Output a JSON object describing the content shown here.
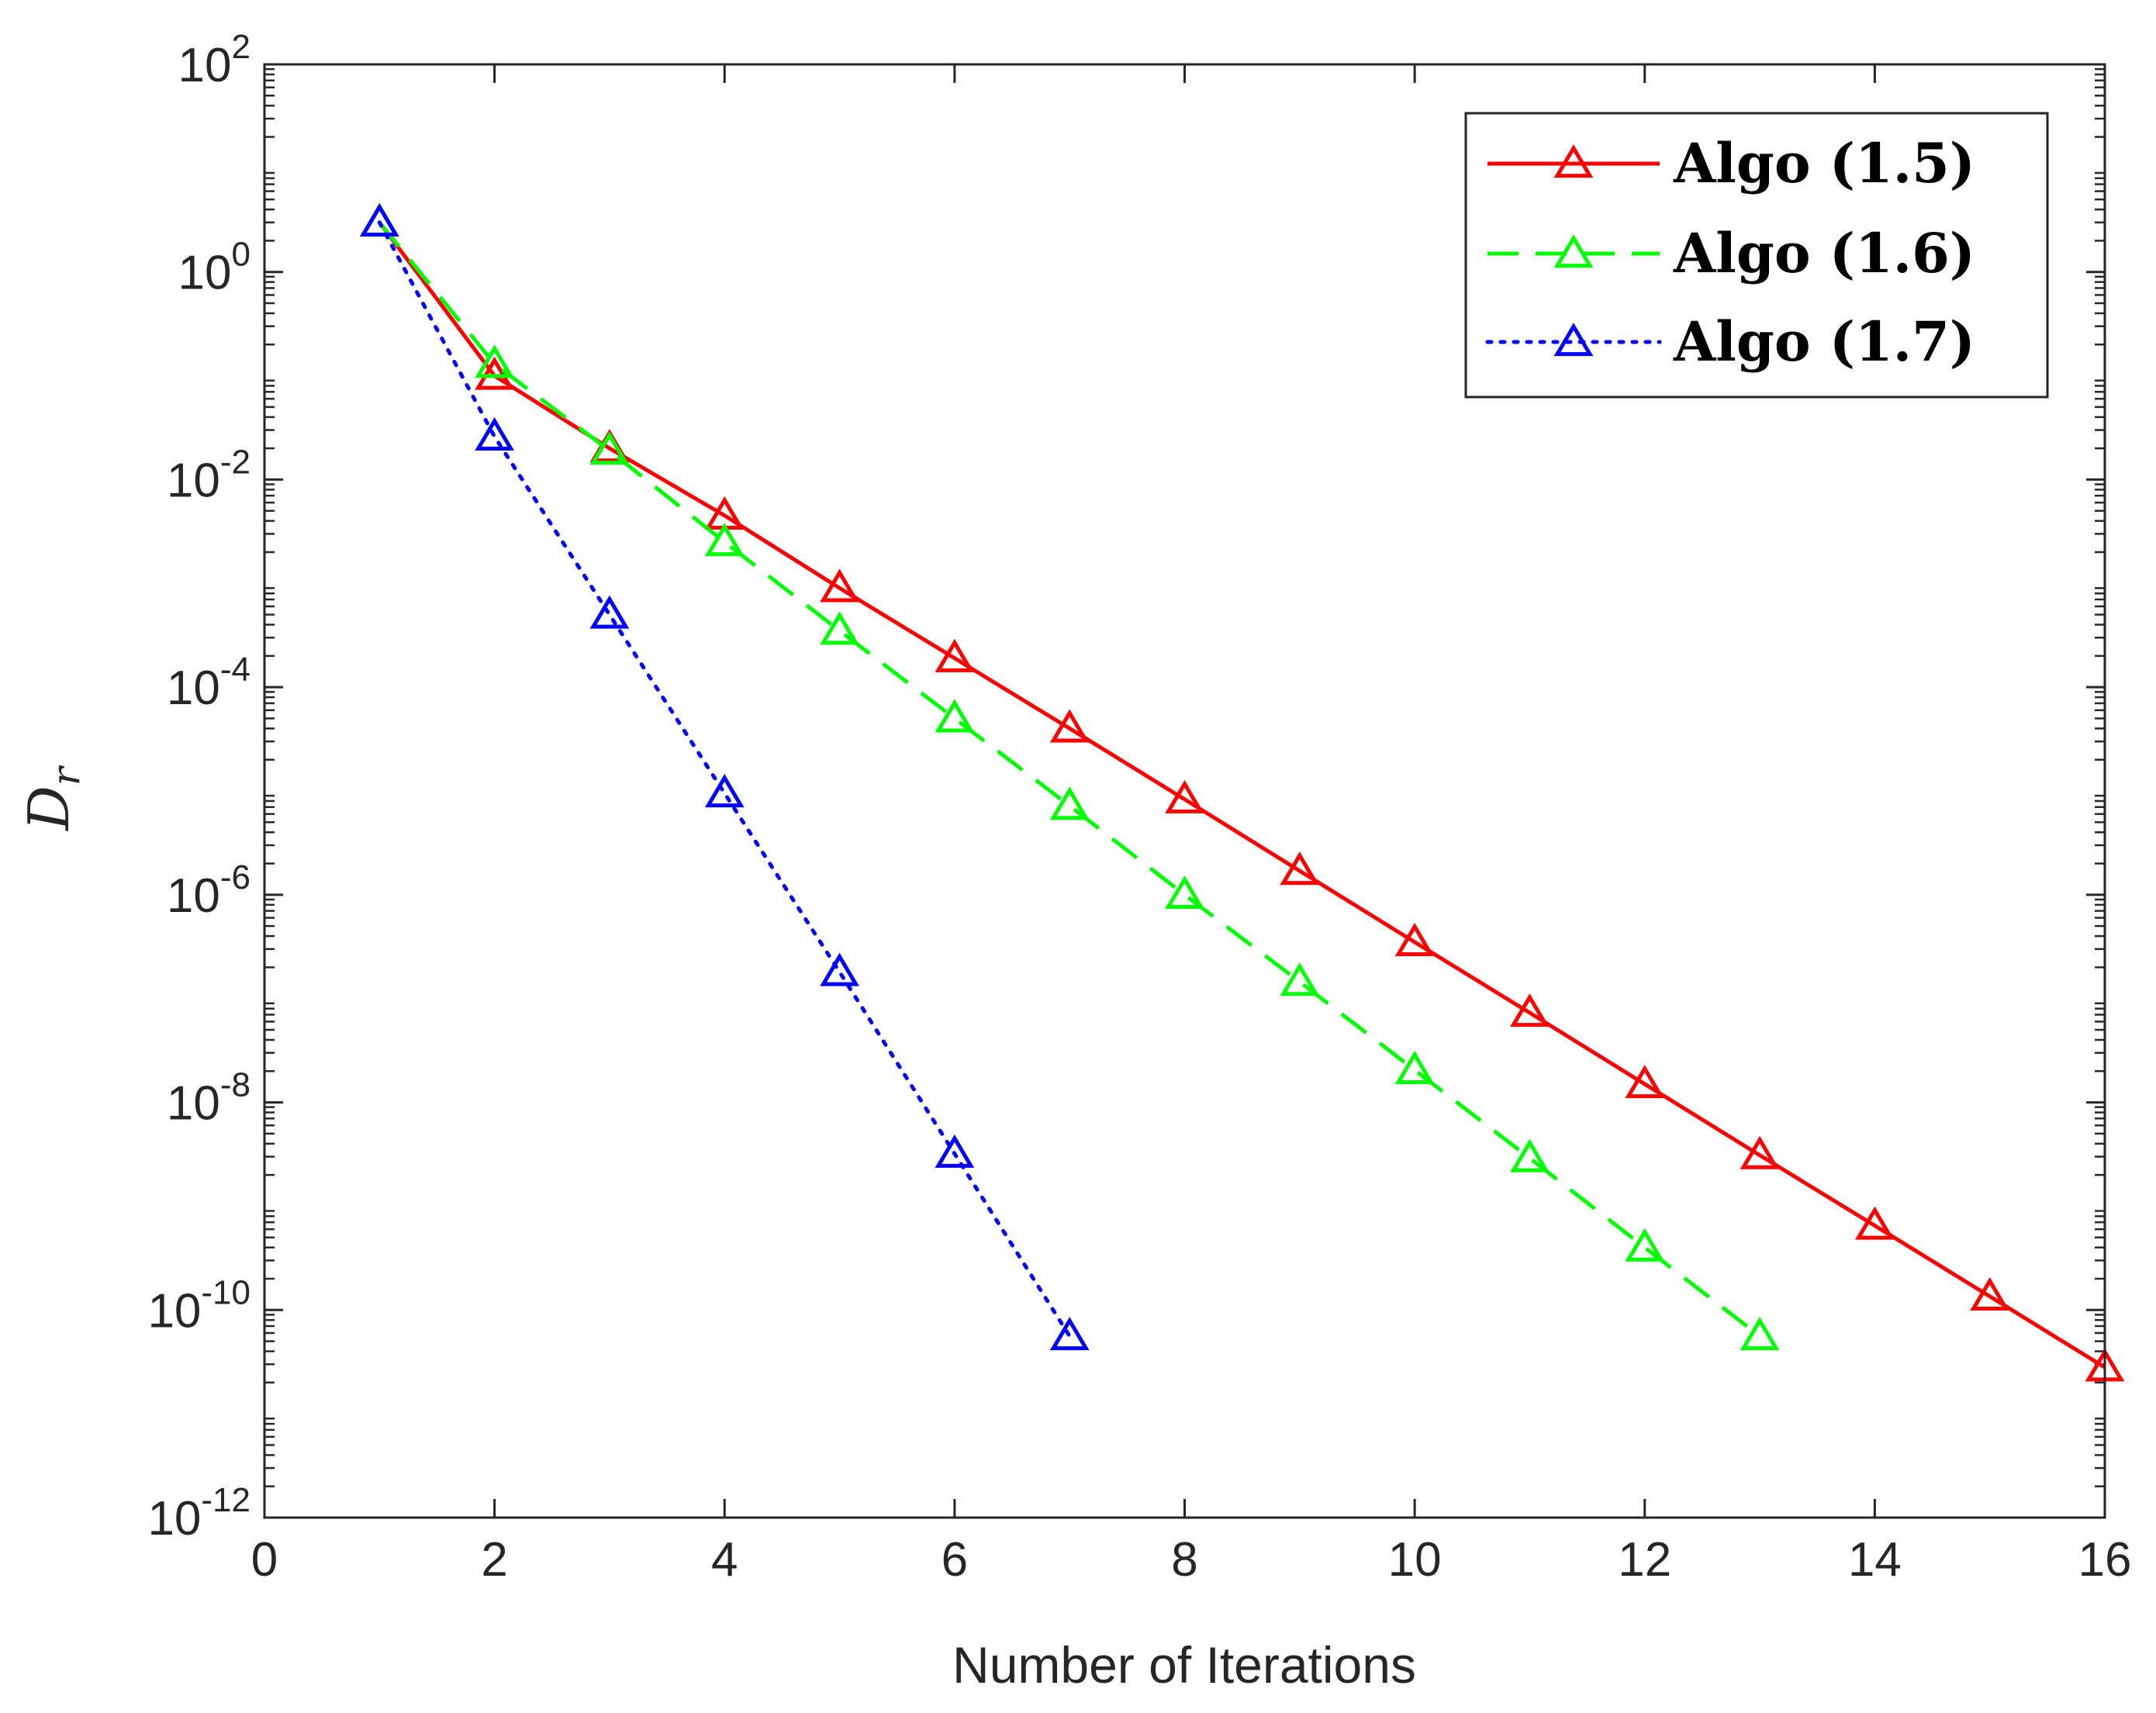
{
  "chart_data": {
    "type": "line",
    "title": "",
    "xlabel": "Number of Iterations",
    "ylabel": "D",
    "ylabel_subscript": "r",
    "xlim": [
      0,
      16
    ],
    "ylim_log10": [
      -12,
      2
    ],
    "y_scale": "log",
    "x_ticks": [
      0,
      2,
      4,
      6,
      8,
      10,
      12,
      14,
      16
    ],
    "x_tick_labels": [
      "0",
      "2",
      "4",
      "6",
      "8",
      "10",
      "12",
      "14",
      "16"
    ],
    "y_tick_exponents": [
      -12,
      -10,
      -8,
      -6,
      -4,
      -2,
      0,
      2
    ],
    "y_tick_labels": [
      {
        "base": "10",
        "exp": "-12"
      },
      {
        "base": "10",
        "exp": "-10"
      },
      {
        "base": "10",
        "exp": "-8"
      },
      {
        "base": "10",
        "exp": "-6"
      },
      {
        "base": "10",
        "exp": "-4"
      },
      {
        "base": "10",
        "exp": "-2"
      },
      {
        "base": "10",
        "exp": "0"
      },
      {
        "base": "10",
        "exp": "2"
      }
    ],
    "grid": false,
    "legend_position": "top-right",
    "series": [
      {
        "name": "Algo (1.5)",
        "color": "#ff0000",
        "line_style": "solid",
        "marker": "triangle",
        "x": [
          1,
          2,
          3,
          4,
          5,
          6,
          7,
          8,
          9,
          10,
          11,
          12,
          13,
          14,
          15,
          16
        ],
        "y": [
          3.0,
          0.1,
          0.02,
          0.0045,
          0.0009,
          0.00019,
          4e-05,
          8.3e-06,
          1.7e-06,
          3.5e-07,
          7.3e-08,
          1.5e-08,
          3.1e-09,
          6.5e-10,
          1.35e-10,
          2.8e-11
        ]
      },
      {
        "name": "Algo (1.6)",
        "color": "#00ff00",
        "line_style": "dashed",
        "marker": "triangle",
        "x": [
          1,
          2,
          3,
          4,
          5,
          6,
          7,
          8,
          9,
          10,
          11,
          12,
          13
        ],
        "y": [
          3.0,
          0.13,
          0.019,
          0.0025,
          0.00035,
          5e-05,
          7.2e-06,
          1e-06,
          1.45e-07,
          2.05e-08,
          2.9e-09,
          4e-10,
          5.6e-11
        ]
      },
      {
        "name": "Algo (1.7)",
        "color": "#0000ff",
        "line_style": "dotted",
        "marker": "triangle",
        "x": [
          1,
          2,
          3,
          4,
          5,
          6,
          7
        ],
        "y": [
          3.0,
          0.026,
          0.0005,
          9.5e-06,
          1.8e-07,
          3.2e-09,
          5.6e-11
        ]
      }
    ]
  }
}
